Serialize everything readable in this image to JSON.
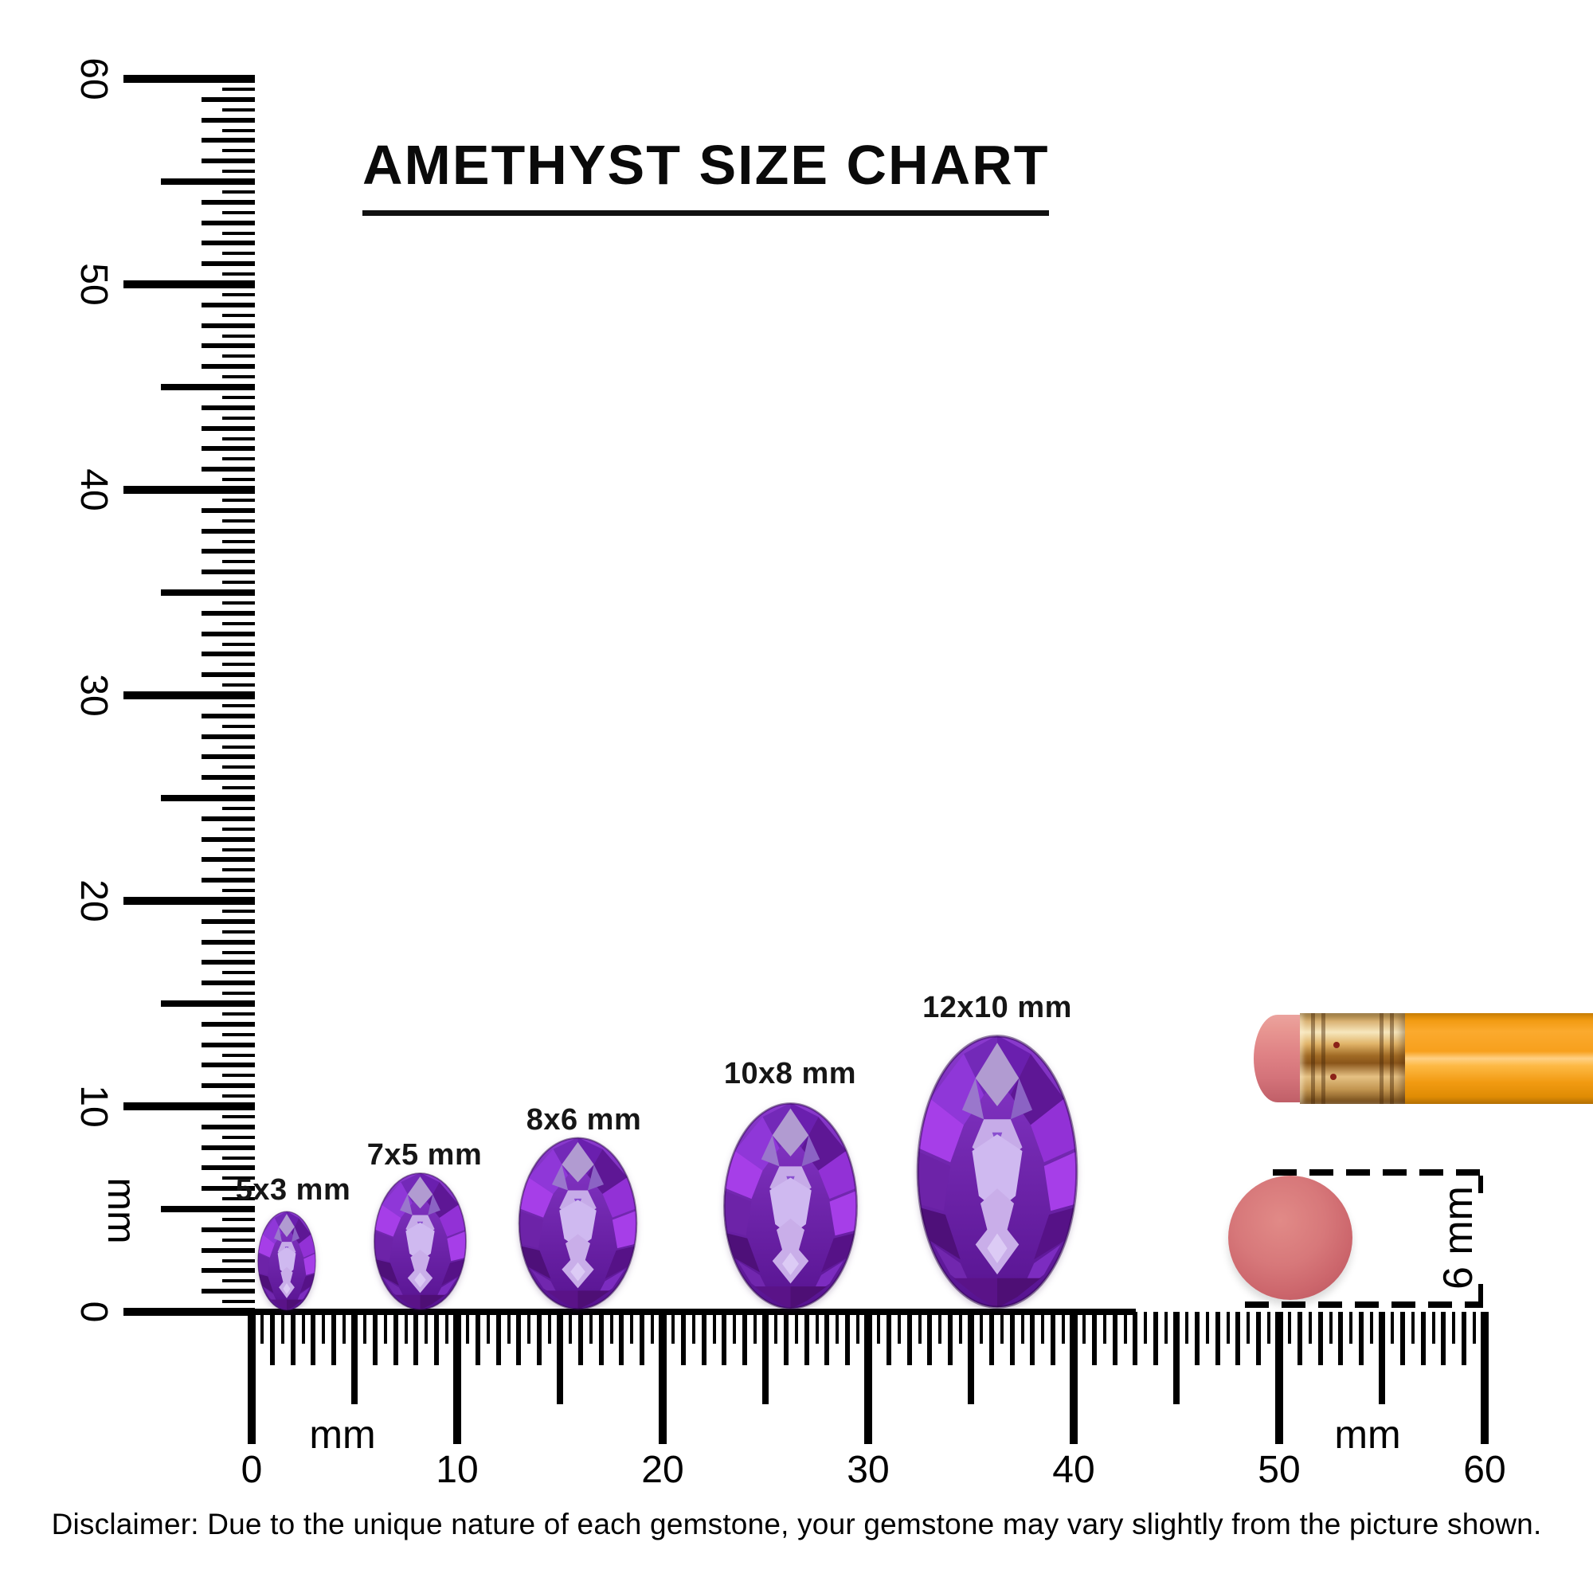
{
  "title": "AMETHYST SIZE CHART",
  "disclaimer": "Disclaimer: Due to the unique nature of each gemstone, your gemstone may vary slightly from the picture shown.",
  "vertical_ruler": {
    "unit_label": "mm",
    "labels": [
      "60",
      "50",
      "40",
      "30",
      "20",
      "10",
      "0"
    ],
    "range_mm": [
      0,
      60
    ],
    "tick_interval_mm": 0.5
  },
  "horizontal_ruler": {
    "unit_label": "mm",
    "labels": [
      "0",
      "10",
      "20",
      "30",
      "40",
      "50",
      "60"
    ],
    "range_mm": [
      0,
      60
    ],
    "tick_interval_mm": 0.5
  },
  "gems": [
    {
      "label": "5x3 mm",
      "length_mm": 5,
      "width_mm": 3
    },
    {
      "label": "7x5 mm",
      "length_mm": 7,
      "width_mm": 5
    },
    {
      "label": "8x6 mm",
      "length_mm": 8,
      "width_mm": 6
    },
    {
      "label": "10x8 mm",
      "length_mm": 10,
      "width_mm": 8
    },
    {
      "label": "12x10 mm",
      "length_mm": 12,
      "width_mm": 10
    }
  ],
  "reference_objects": {
    "pencil": "pencil with eraser tip",
    "disc_size_label": "6 mm"
  },
  "colors": {
    "ink": "#000000",
    "amethyst_dark": "#571390",
    "amethyst_mid": "#7127ae",
    "amethyst_bright": "#a63ee8",
    "amethyst_light": "#c9aee9",
    "pencil_body": "#f7a01d",
    "pencil_ferrule": "#d9b273",
    "pencil_eraser": "#df8285",
    "eraser_disc": "#cc666c"
  }
}
